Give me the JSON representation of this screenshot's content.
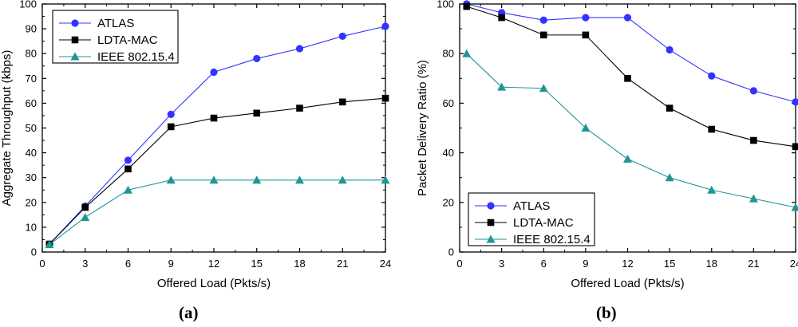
{
  "colors": {
    "atlas": "#3333ff",
    "ldta": "#000000",
    "ieee": "#1e9696"
  },
  "captions": {
    "a": "(a)",
    "b": "(b)"
  },
  "chart_data": [
    {
      "type": "line",
      "title": "",
      "xlabel": "Offered Load (Pkts/s)",
      "ylabel": "Aggregate Throughput (kbps)",
      "xlim": [
        0,
        24
      ],
      "ylim": [
        0,
        100
      ],
      "xticks": [
        0,
        3,
        6,
        9,
        12,
        15,
        18,
        21,
        24
      ],
      "yticks": [
        0,
        10,
        20,
        30,
        40,
        50,
        60,
        70,
        80,
        90,
        100
      ],
      "legend_position": "top-left",
      "x": [
        0.5,
        3,
        6,
        9,
        12,
        15,
        18,
        21,
        24
      ],
      "series": [
        {
          "name": "ATLAS",
          "marker": "circle",
          "values": [
            3.2,
            18.5,
            37,
            55.5,
            72.5,
            78,
            82,
            87,
            91
          ]
        },
        {
          "name": "LDTA-MAC",
          "marker": "square",
          "values": [
            3.2,
            18,
            33.5,
            50.5,
            54,
            56,
            58,
            60.5,
            62
          ]
        },
        {
          "name": "IEEE 802.15.4",
          "marker": "triangle",
          "values": [
            3,
            14,
            25,
            29,
            29,
            29,
            29,
            29,
            29
          ]
        }
      ]
    },
    {
      "type": "line",
      "title": "",
      "xlabel": "Offered Load (Pkts/s)",
      "ylabel": "Packet Delivery Ratio (%)",
      "xlim": [
        0,
        24
      ],
      "ylim": [
        0,
        100
      ],
      "xticks": [
        0,
        3,
        6,
        9,
        12,
        15,
        18,
        21,
        24
      ],
      "yticks": [
        0,
        20,
        40,
        60,
        80,
        100
      ],
      "legend_position": "bottom-left",
      "x": [
        0.5,
        3,
        6,
        9,
        12,
        15,
        18,
        21,
        24
      ],
      "series": [
        {
          "name": "ATLAS",
          "marker": "circle",
          "values": [
            100,
            96.5,
            93.5,
            94.5,
            94.5,
            81.5,
            71,
            65,
            60.5
          ]
        },
        {
          "name": "LDTA-MAC",
          "marker": "square",
          "values": [
            99,
            94.5,
            87.5,
            87.5,
            70,
            58,
            49.5,
            45,
            42.5
          ]
        },
        {
          "name": "IEEE 802.15.4",
          "marker": "triangle",
          "values": [
            80,
            66.5,
            66,
            50,
            37.5,
            30,
            25,
            21.5,
            18
          ]
        }
      ]
    }
  ]
}
